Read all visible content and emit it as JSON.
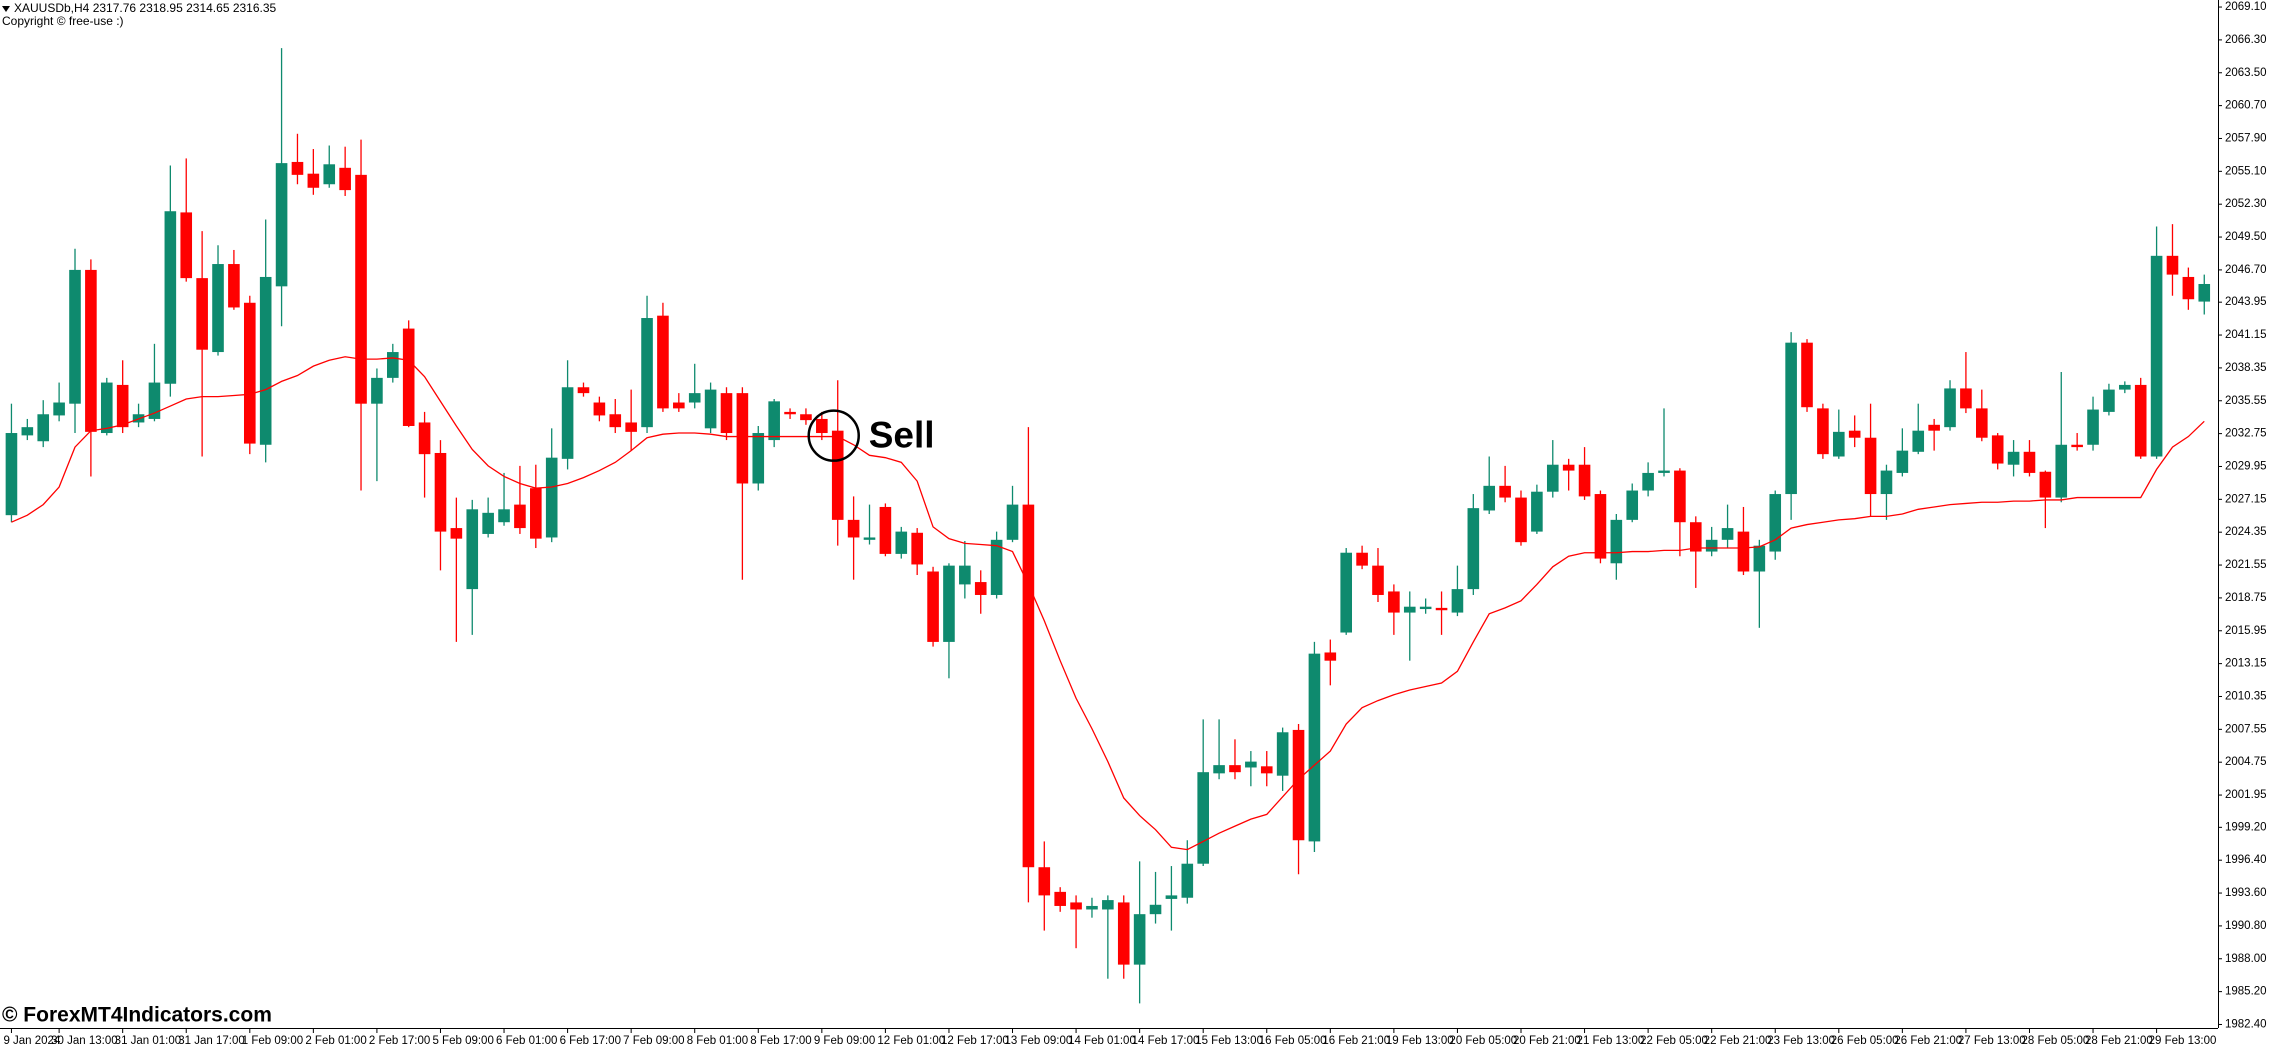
{
  "chart_data": {
    "type": "candlestick",
    "title": "XAUUSDb,H4  2317.76 2318.95 2314.65 2316.35",
    "subtitle": "Copyright © free-use :)",
    "annotations": [
      "Sell"
    ],
    "up_color": "#0e8a6e",
    "down_color": "#ff0000",
    "ylim": [
      1982.1,
      2069.7
    ],
    "yticks": [
      {
        "value": 2069.1,
        "label": "2069.10"
      },
      {
        "value": 2066.3,
        "label": "2066.30"
      },
      {
        "value": 2063.5,
        "label": "2063.50"
      },
      {
        "value": 2060.7,
        "label": "2060.70"
      },
      {
        "value": 2057.9,
        "label": "2057.90"
      },
      {
        "value": 2055.1,
        "label": "2055.10"
      },
      {
        "value": 2052.3,
        "label": "2052.30"
      },
      {
        "value": 2049.5,
        "label": "2049.50"
      },
      {
        "value": 2046.7,
        "label": "2046.70"
      },
      2043.95,
      2041.15,
      2038.35,
      2035.55,
      2032.75,
      2029.95,
      2027.15,
      2024.35,
      2021.55,
      2018.75,
      2015.95,
      2013.15,
      2010.35,
      2007.55,
      2004.75,
      2001.95,
      {
        "value": 1999.2,
        "label": "1999.20"
      },
      {
        "value": 1996.4,
        "label": "1996.40"
      },
      {
        "value": 1993.6,
        "label": "1993.60"
      },
      {
        "value": 1990.8,
        "label": "1990.80"
      },
      {
        "value": 1988,
        "label": "1988.00"
      },
      {
        "value": 1985.2,
        "label": "1985.20"
      },
      {
        "value": 1982.4,
        "label": "1982.40"
      }
    ],
    "categories": [
      "9 Jan 2024",
      null,
      null,
      "30 Jan 13:00",
      null,
      null,
      null,
      "31 Jan 01:00",
      null,
      null,
      null,
      "31 Jan 17:00",
      null,
      null,
      null,
      "1 Feb 09:00",
      null,
      null,
      null,
      "2 Feb 01:00",
      null,
      null,
      null,
      "2 Feb 17:00",
      null,
      null,
      null,
      "5 Feb 09:00",
      null,
      null,
      null,
      "6 Feb 01:00",
      null,
      null,
      null,
      "6 Feb 17:00",
      null,
      null,
      null,
      "7 Feb 09:00",
      null,
      null,
      null,
      "8 Feb 01:00",
      null,
      null,
      null,
      "8 Feb 17:00",
      null,
      null,
      null,
      "9 Feb 09:00",
      null,
      null,
      null,
      "12 Feb 01:00",
      null,
      null,
      null,
      "12 Feb 17:00",
      null,
      null,
      null,
      "13 Feb 09:00",
      null,
      null,
      null,
      "14 Feb 01:00",
      null,
      null,
      null,
      "14 Feb 17:00",
      null,
      null,
      null,
      "15 Feb 13:00",
      null,
      null,
      null,
      "16 Feb 05:00",
      null,
      null,
      null,
      "16 Feb 21:00",
      null,
      null,
      null,
      "19 Feb 13:00",
      null,
      null,
      null,
      "20 Feb 05:00",
      null,
      null,
      null,
      "20 Feb 21:00",
      null,
      null,
      null,
      "21 Feb 13:00",
      null,
      null,
      null,
      "22 Feb 05:00",
      null,
      null,
      null,
      "22 Feb 21:00",
      null,
      null,
      null,
      "23 Feb 13:00",
      null,
      null,
      null,
      "26 Feb 05:00",
      null,
      null,
      null,
      "26 Feb 21:00",
      null,
      null,
      null,
      "27 Feb 13:00",
      null,
      null,
      null,
      "28 Feb 05:00",
      null,
      null,
      null,
      "28 Feb 21:00",
      null,
      null,
      null,
      "29 Feb 13:00",
      null,
      null,
      null
    ],
    "open": [
      2025.8,
      2032.6,
      2032.1,
      2034.3,
      2035.3,
      2046.7,
      2032.8,
      2036.9,
      2033.7,
      2034.0,
      2037.0,
      2051.6,
      2046.0,
      2039.7,
      2047.2,
      2043.9,
      2031.8,
      2045.3,
      2055.9,
      2054.9,
      2054.0,
      2055.4,
      2054.8,
      2035.3,
      2037.5,
      2041.7,
      2033.7,
      2031.1,
      2024.7,
      2019.5,
      2024.2,
      2025.2,
      2026.7,
      2028.1,
      2023.9,
      2030.6,
      2036.7,
      2035.4,
      2034.4,
      2033.7,
      2033.3,
      2042.8,
      2035.4,
      2035.4,
      2033.2,
      2036.2,
      2036.2,
      2028.5,
      2032.2,
      2034.6,
      2034.4,
      2034.0,
      2033.0,
      2025.4,
      2023.7,
      2026.5,
      2022.5,
      2024.3,
      2021.0,
      2015.0,
      2019.9,
      2020.1,
      2019.0,
      2023.7,
      2026.7,
      1995.8,
      1993.7,
      1992.8,
      1992.2,
      1992.2,
      1992.8,
      1987.5,
      1991.8,
      1993.1,
      1993.2,
      1996.1,
      2003.8,
      2004.5,
      2004.3,
      2004.4,
      2003.6,
      2007.5,
      1998.0,
      2014.1,
      2015.8,
      2022.6,
      2021.5,
      2019.3,
      2017.5,
      2017.8,
      2017.9,
      2017.5,
      2019.5,
      2026.2,
      2028.3,
      2027.3,
      2024.4,
      2027.8,
      2030.1,
      2030.1,
      2027.6,
      2021.7,
      2025.4,
      2027.9,
      2029.4,
      2029.6,
      2025.2,
      2022.7,
      2023.7,
      2024.4,
      2021.0,
      2022.7,
      2027.6,
      2040.5,
      2034.9,
      2030.8,
      2033.0,
      2032.4,
      2027.6,
      2029.4,
      2031.2,
      2033.5,
      2033.3,
      2036.6,
      2034.9,
      2032.6,
      2030.1,
      2031.2,
      2029.5,
      2027.3,
      2031.8,
      2031.8,
      2034.6,
      2036.5,
      2036.9,
      2030.8,
      2047.9,
      2046.1,
      2044.0
    ],
    "high": [
      2035.3,
      2034.0,
      2035.6,
      2037.1,
      2048.5,
      2047.6,
      2037.5,
      2039.0,
      2035.3,
      2040.4,
      2055.6,
      2056.2,
      2050.0,
      2048.8,
      2048.4,
      2044.5,
      2051.0,
      2065.6,
      2058.3,
      2057.0,
      2057.3,
      2057.2,
      2057.8,
      2038.3,
      2040.4,
      2042.4,
      2034.6,
      2032.2,
      2027.3,
      2027.1,
      2027.3,
      2029.4,
      2030.0,
      2030.1,
      2033.2,
      2039.0,
      2037.1,
      2035.9,
      2035.7,
      2036.5,
      2044.5,
      2043.9,
      2036.2,
      2038.7,
      2037.1,
      2036.7,
      2036.7,
      2033.4,
      2035.7,
      2034.9,
      2034.9,
      2034.6,
      2037.3,
      2027.4,
      2026.7,
      2026.8,
      2024.8,
      2024.7,
      2021.4,
      2021.7,
      2023.6,
      2021.1,
      2024.4,
      2028.3,
      2033.3,
      1998.0,
      1994.1,
      1993.4,
      1993.2,
      1993.4,
      1993.4,
      1996.3,
      1995.4,
      1995.9,
      1998.1,
      2008.4,
      2008.4,
      2006.7,
      2005.7,
      2005.7,
      2007.7,
      2008.0,
      2015.0,
      2015.2,
      2023.0,
      2023.2,
      2023.0,
      2019.9,
      2019.3,
      2018.7,
      2019.3,
      2021.5,
      2027.6,
      2030.8,
      2030.0,
      2027.9,
      2028.4,
      2032.2,
      2030.6,
      2031.6,
      2027.9,
      2025.9,
      2028.5,
      2030.3,
      2034.9,
      2029.8,
      2025.7,
      2024.8,
      2026.7,
      2026.5,
      2023.7,
      2027.9,
      2041.4,
      2040.8,
      2035.3,
      2034.8,
      2034.3,
      2035.3,
      2030.1,
      2033.2,
      2035.3,
      2034.0,
      2037.3,
      2039.7,
      2036.5,
      2032.8,
      2032.2,
      2032.2,
      2029.6,
      2038.0,
      2032.8,
      2035.9,
      2037.0,
      2037.2,
      2037.5,
      2050.4,
      2050.6,
      2046.9,
      2046.3
    ],
    "low": [
      2025.2,
      2032.2,
      2031.6,
      2033.8,
      2032.8,
      2029.1,
      2032.6,
      2032.8,
      2033.3,
      2033.8,
      2035.9,
      2045.7,
      2030.8,
      2039.4,
      2043.3,
      2031.0,
      2030.3,
      2041.9,
      2054.0,
      2053.1,
      2053.7,
      2053.0,
      2027.9,
      2028.7,
      2037.1,
      2033.3,
      2027.3,
      2021.1,
      2015.0,
      2015.6,
      2023.9,
      2024.9,
      2024.2,
      2023.0,
      2023.5,
      2029.7,
      2035.9,
      2033.8,
      2032.8,
      2031.3,
      2032.8,
      2034.6,
      2034.6,
      2034.9,
      2032.8,
      2032.2,
      2020.3,
      2027.9,
      2031.6,
      2034.0,
      2033.5,
      2032.2,
      2023.2,
      2020.3,
      2023.3,
      2022.3,
      2022.1,
      2020.7,
      2014.6,
      2011.9,
      2018.7,
      2017.4,
      2018.7,
      2023.5,
      1992.8,
      1990.4,
      1992.0,
      1988.9,
      1991.5,
      1986.3,
      1986.3,
      1984.2,
      1991.0,
      1990.4,
      1992.7,
      1995.9,
      2003.3,
      2003.3,
      2002.7,
      2002.7,
      2002.3,
      1995.2,
      1997.1,
      2011.3,
      2015.6,
      2021.2,
      2018.4,
      2015.6,
      2013.4,
      2017.4,
      2015.6,
      2017.2,
      2019.0,
      2025.9,
      2026.9,
      2023.2,
      2024.2,
      2027.3,
      2027.9,
      2027.1,
      2021.7,
      2020.3,
      2025.2,
      2027.4,
      2029.1,
      2022.3,
      2019.6,
      2022.3,
      2023.0,
      2020.7,
      2016.2,
      2022.0,
      2025.4,
      2034.6,
      2030.6,
      2030.6,
      2031.6,
      2025.7,
      2025.4,
      2029.1,
      2031.0,
      2031.3,
      2033.0,
      2034.5,
      2032.1,
      2029.7,
      2029.1,
      2029.1,
      2024.7,
      2026.9,
      2031.3,
      2031.3,
      2034.3,
      2036.2,
      2030.6,
      2030.6,
      2044.5,
      2043.3,
      2042.9
    ],
    "close": [
      2032.8,
      2033.3,
      2034.4,
      2035.4,
      2046.7,
      2032.9,
      2037.1,
      2033.3,
      2034.4,
      2037.1,
      2051.7,
      2046.0,
      2039.9,
      2047.2,
      2043.5,
      2031.9,
      2046.1,
      2055.8,
      2054.8,
      2053.7,
      2055.7,
      2053.5,
      2035.3,
      2037.5,
      2039.7,
      2033.4,
      2031.0,
      2024.4,
      2023.8,
      2026.3,
      2026.0,
      2026.3,
      2024.7,
      2023.8,
      2030.7,
      2036.7,
      2036.2,
      2034.3,
      2033.3,
      2032.9,
      2042.6,
      2034.9,
      2034.9,
      2036.2,
      2036.5,
      2032.8,
      2028.5,
      2032.8,
      2035.5,
      2034.4,
      2033.9,
      2032.8,
      2025.4,
      2023.9,
      2023.9,
      2022.5,
      2024.4,
      2021.6,
      2015.0,
      2021.5,
      2021.5,
      2019.0,
      2023.7,
      2026.7,
      1995.8,
      1993.4,
      1992.5,
      1992.2,
      1992.5,
      1993.0,
      1987.5,
      1991.8,
      1992.6,
      1993.4,
      1996.1,
      2003.9,
      2004.5,
      2003.9,
      2004.8,
      2003.8,
      2007.3,
      1998.1,
      2014.0,
      2013.4,
      2022.6,
      2021.5,
      2019.0,
      2017.5,
      2018.0,
      2018.0,
      2017.7,
      2019.5,
      2026.4,
      2028.3,
      2027.3,
      2023.5,
      2027.8,
      2030.1,
      2029.6,
      2027.4,
      2022.1,
      2025.4,
      2027.9,
      2029.4,
      2029.6,
      2025.2,
      2022.7,
      2023.7,
      2024.7,
      2021.0,
      2023.2,
      2027.6,
      2040.5,
      2035.0,
      2031.0,
      2032.9,
      2032.4,
      2027.6,
      2029.6,
      2031.3,
      2033.0,
      2033.0,
      2036.6,
      2034.9,
      2032.4,
      2030.2,
      2031.2,
      2029.4,
      2027.3,
      2031.8,
      2031.6,
      2034.8,
      2036.5,
      2036.9,
      2030.8,
      2047.9,
      2046.3,
      2044.2,
      2045.5
    ],
    "ma": {
      "color": "#ff0000",
      "values": [
        2025.2,
        2025.8,
        2026.7,
        2028.2,
        2031.6,
        2033.0,
        2033.2,
        2033.5,
        2034.0,
        2034.5,
        2035.1,
        2035.7,
        2035.9,
        2035.9,
        2036.0,
        2036.1,
        2036.5,
        2037.2,
        2037.7,
        2038.5,
        2039.0,
        2039.3,
        2039.1,
        2039.1,
        2039.2,
        2039.0,
        2037.6,
        2035.5,
        2033.4,
        2031.4,
        2030.0,
        2029.1,
        2028.5,
        2028.1,
        2028.2,
        2028.5,
        2029.0,
        2029.6,
        2030.3,
        2031.3,
        2032.4,
        2032.7,
        2032.8,
        2032.8,
        2032.7,
        2032.5,
        2032.5,
        2032.5,
        2032.5,
        2032.5,
        2032.5,
        2032.5,
        2032.5,
        2031.8,
        2030.9,
        2030.7,
        2030.3,
        2028.7,
        2024.8,
        2023.8,
        2023.4,
        2023.3,
        2023.2,
        2022.7,
        2019.9,
        2016.8,
        2013.4,
        2010.2,
        2007.6,
        2004.8,
        2001.7,
        2000.2,
        1999.0,
        1997.5,
        1997.3,
        1998.0,
        1998.7,
        1999.3,
        1999.9,
        2000.3,
        2001.8,
        2003.3,
        2004.5,
        2005.7,
        2008.0,
        2009.4,
        2010.0,
        2010.5,
        2010.9,
        2011.2,
        2011.5,
        2012.5,
        2015.0,
        2017.4,
        2017.9,
        2018.5,
        2019.9,
        2021.4,
        2022.3,
        2022.6,
        2022.6,
        2022.6,
        2022.7,
        2022.7,
        2022.8,
        2022.8,
        2023.0,
        2023.0,
        2023.0,
        2023.0,
        2023.1,
        2023.7,
        2024.7,
        2025.0,
        2025.2,
        2025.4,
        2025.5,
        2025.7,
        2025.7,
        2025.9,
        2026.3,
        2026.5,
        2026.7,
        2026.8,
        2026.9,
        2026.9,
        2027.0,
        2027.0,
        2027.1,
        2027.1,
        2027.3,
        2027.3,
        2027.3,
        2027.3,
        2027.3,
        2029.7,
        2031.6,
        2032.5,
        2033.8
      ]
    }
  },
  "watermark": "© ForexMT4Indicators.com"
}
